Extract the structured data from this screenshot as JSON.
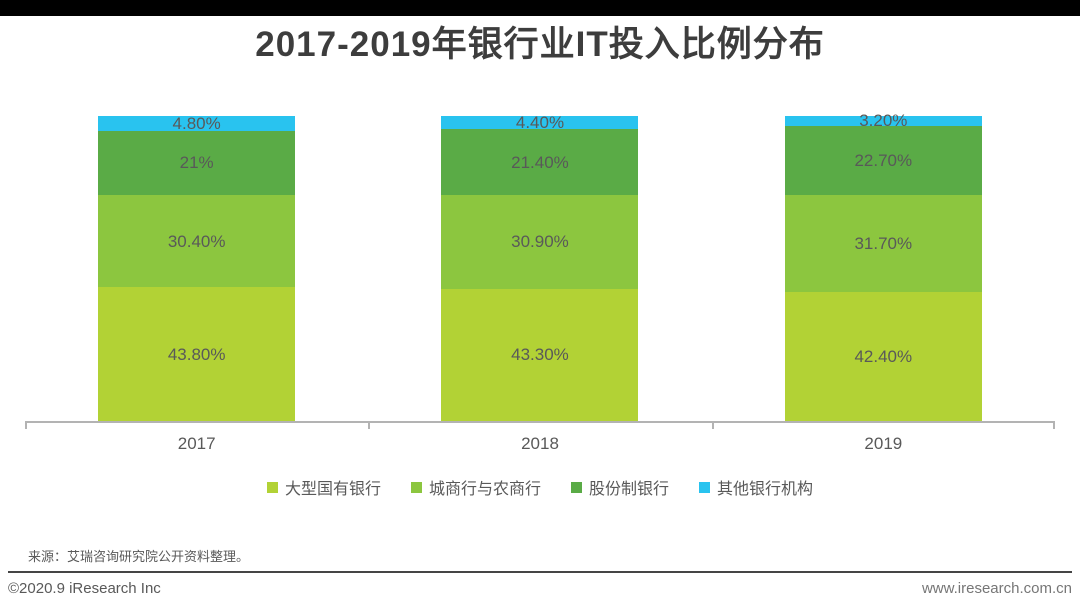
{
  "page": {
    "title": "2017-2019年银行业IT投入比例分布",
    "source_note": "来源：艾瑞咨询研究院公开资料整理。",
    "copyright": "©2020.9 iResearch Inc",
    "website": "www.iresearch.com.cn"
  },
  "chart_data": {
    "type": "bar",
    "stacked": true,
    "percentage": true,
    "title": "2017-2019年银行业IT投入比例分布",
    "categories": [
      "2017",
      "2018",
      "2019"
    ],
    "series": [
      {
        "name": "大型国有银行",
        "color": "#b2d235",
        "values": [
          43.8,
          43.3,
          42.4
        ],
        "labels": [
          "43.80%",
          "43.30%",
          "42.40%"
        ]
      },
      {
        "name": "城商行与农商行",
        "color": "#8cc63f",
        "values": [
          30.4,
          30.9,
          31.7
        ],
        "labels": [
          "30.40%",
          "30.90%",
          "31.70%"
        ]
      },
      {
        "name": "股份制银行",
        "color": "#5aab46",
        "values": [
          21.0,
          21.4,
          22.7
        ],
        "labels": [
          "21%",
          "21.40%",
          "22.70%"
        ]
      },
      {
        "name": "其他银行机构",
        "color": "#29c3ef",
        "values": [
          4.8,
          4.4,
          3.2
        ],
        "labels": [
          "4.80%",
          "4.40%",
          "3.20%"
        ]
      }
    ],
    "ylim": [
      0,
      100
    ],
    "grid": false,
    "legend_position": "bottom",
    "bar_label_color": "#595959"
  }
}
